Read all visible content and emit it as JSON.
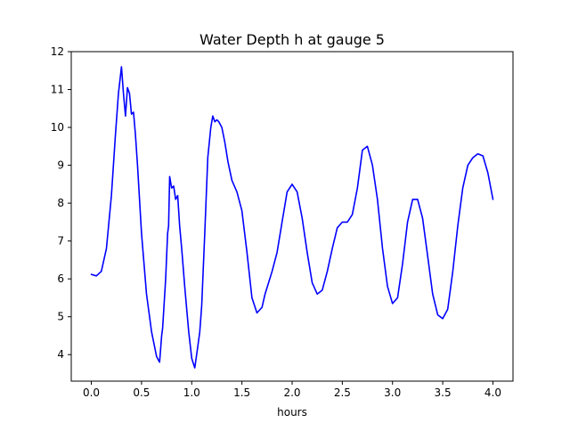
{
  "chart_data": {
    "type": "line",
    "title": "Water Depth h at gauge 5",
    "xlabel": "hours",
    "ylabel": "",
    "xlim": [
      -0.2,
      4.2
    ],
    "ylim": [
      3.3,
      12
    ],
    "xticks": [
      0.0,
      0.5,
      1.0,
      1.5,
      2.0,
      2.5,
      3.0,
      3.5,
      4.0
    ],
    "xtick_labels": [
      "0.0",
      "0.5",
      "1.0",
      "1.5",
      "2.0",
      "2.5",
      "3.0",
      "3.5",
      "4.0"
    ],
    "yticks": [
      4,
      5,
      6,
      7,
      8,
      9,
      10,
      11,
      12
    ],
    "ytick_labels": [
      "4",
      "5",
      "6",
      "7",
      "8",
      "9",
      "10",
      "11",
      "12"
    ],
    "grid": false,
    "legend": "none",
    "line_color": "#0000ff",
    "series": [
      {
        "x": [
          0.0,
          0.05,
          0.1,
          0.15,
          0.2,
          0.24,
          0.27,
          0.3,
          0.32,
          0.34,
          0.36,
          0.38,
          0.4,
          0.42,
          0.44,
          0.46,
          0.5,
          0.55,
          0.6,
          0.65,
          0.68,
          0.7,
          0.71,
          0.74,
          0.76,
          0.77,
          0.78,
          0.8,
          0.82,
          0.84,
          0.86,
          0.88,
          0.9,
          0.93,
          0.97,
          1.0,
          1.03,
          1.06,
          1.08,
          1.1,
          1.13,
          1.16,
          1.19,
          1.21,
          1.23,
          1.25,
          1.27,
          1.3,
          1.33,
          1.36,
          1.4,
          1.45,
          1.5,
          1.55,
          1.6,
          1.65,
          1.7,
          1.73,
          1.76,
          1.8,
          1.85,
          1.9,
          1.95,
          2.0,
          2.05,
          2.1,
          2.15,
          2.2,
          2.25,
          2.3,
          2.35,
          2.4,
          2.45,
          2.5,
          2.55,
          2.6,
          2.65,
          2.7,
          2.75,
          2.8,
          2.85,
          2.9,
          2.95,
          3.0,
          3.05,
          3.1,
          3.15,
          3.2,
          3.25,
          3.3,
          3.35,
          3.4,
          3.45,
          3.5,
          3.55,
          3.6,
          3.65,
          3.7,
          3.75,
          3.8,
          3.85,
          3.9,
          3.95,
          4.0
        ],
        "values": [
          6.12,
          6.08,
          6.2,
          6.8,
          8.2,
          9.8,
          10.9,
          11.6,
          10.9,
          10.3,
          11.05,
          10.9,
          10.35,
          10.4,
          9.8,
          9.0,
          7.2,
          5.6,
          4.6,
          3.95,
          3.8,
          4.5,
          4.7,
          6.0,
          7.2,
          7.4,
          8.7,
          8.4,
          8.45,
          8.1,
          8.2,
          7.4,
          6.8,
          5.8,
          4.6,
          3.9,
          3.65,
          4.2,
          4.6,
          5.3,
          7.2,
          9.2,
          10.0,
          10.3,
          10.15,
          10.2,
          10.15,
          10.0,
          9.6,
          9.1,
          8.6,
          8.3,
          7.8,
          6.7,
          5.5,
          5.1,
          5.25,
          5.6,
          5.85,
          6.2,
          6.7,
          7.5,
          8.3,
          8.5,
          8.3,
          7.6,
          6.7,
          5.9,
          5.6,
          5.7,
          6.2,
          6.8,
          7.35,
          7.5,
          7.5,
          7.7,
          8.4,
          9.4,
          9.5,
          9.0,
          8.1,
          6.8,
          5.8,
          5.35,
          5.5,
          6.4,
          7.5,
          8.1,
          8.1,
          7.6,
          6.6,
          5.6,
          5.05,
          4.95,
          5.2,
          6.2,
          7.4,
          8.4,
          9.0,
          9.2,
          9.3,
          9.25,
          8.8,
          8.1
        ]
      }
    ]
  }
}
